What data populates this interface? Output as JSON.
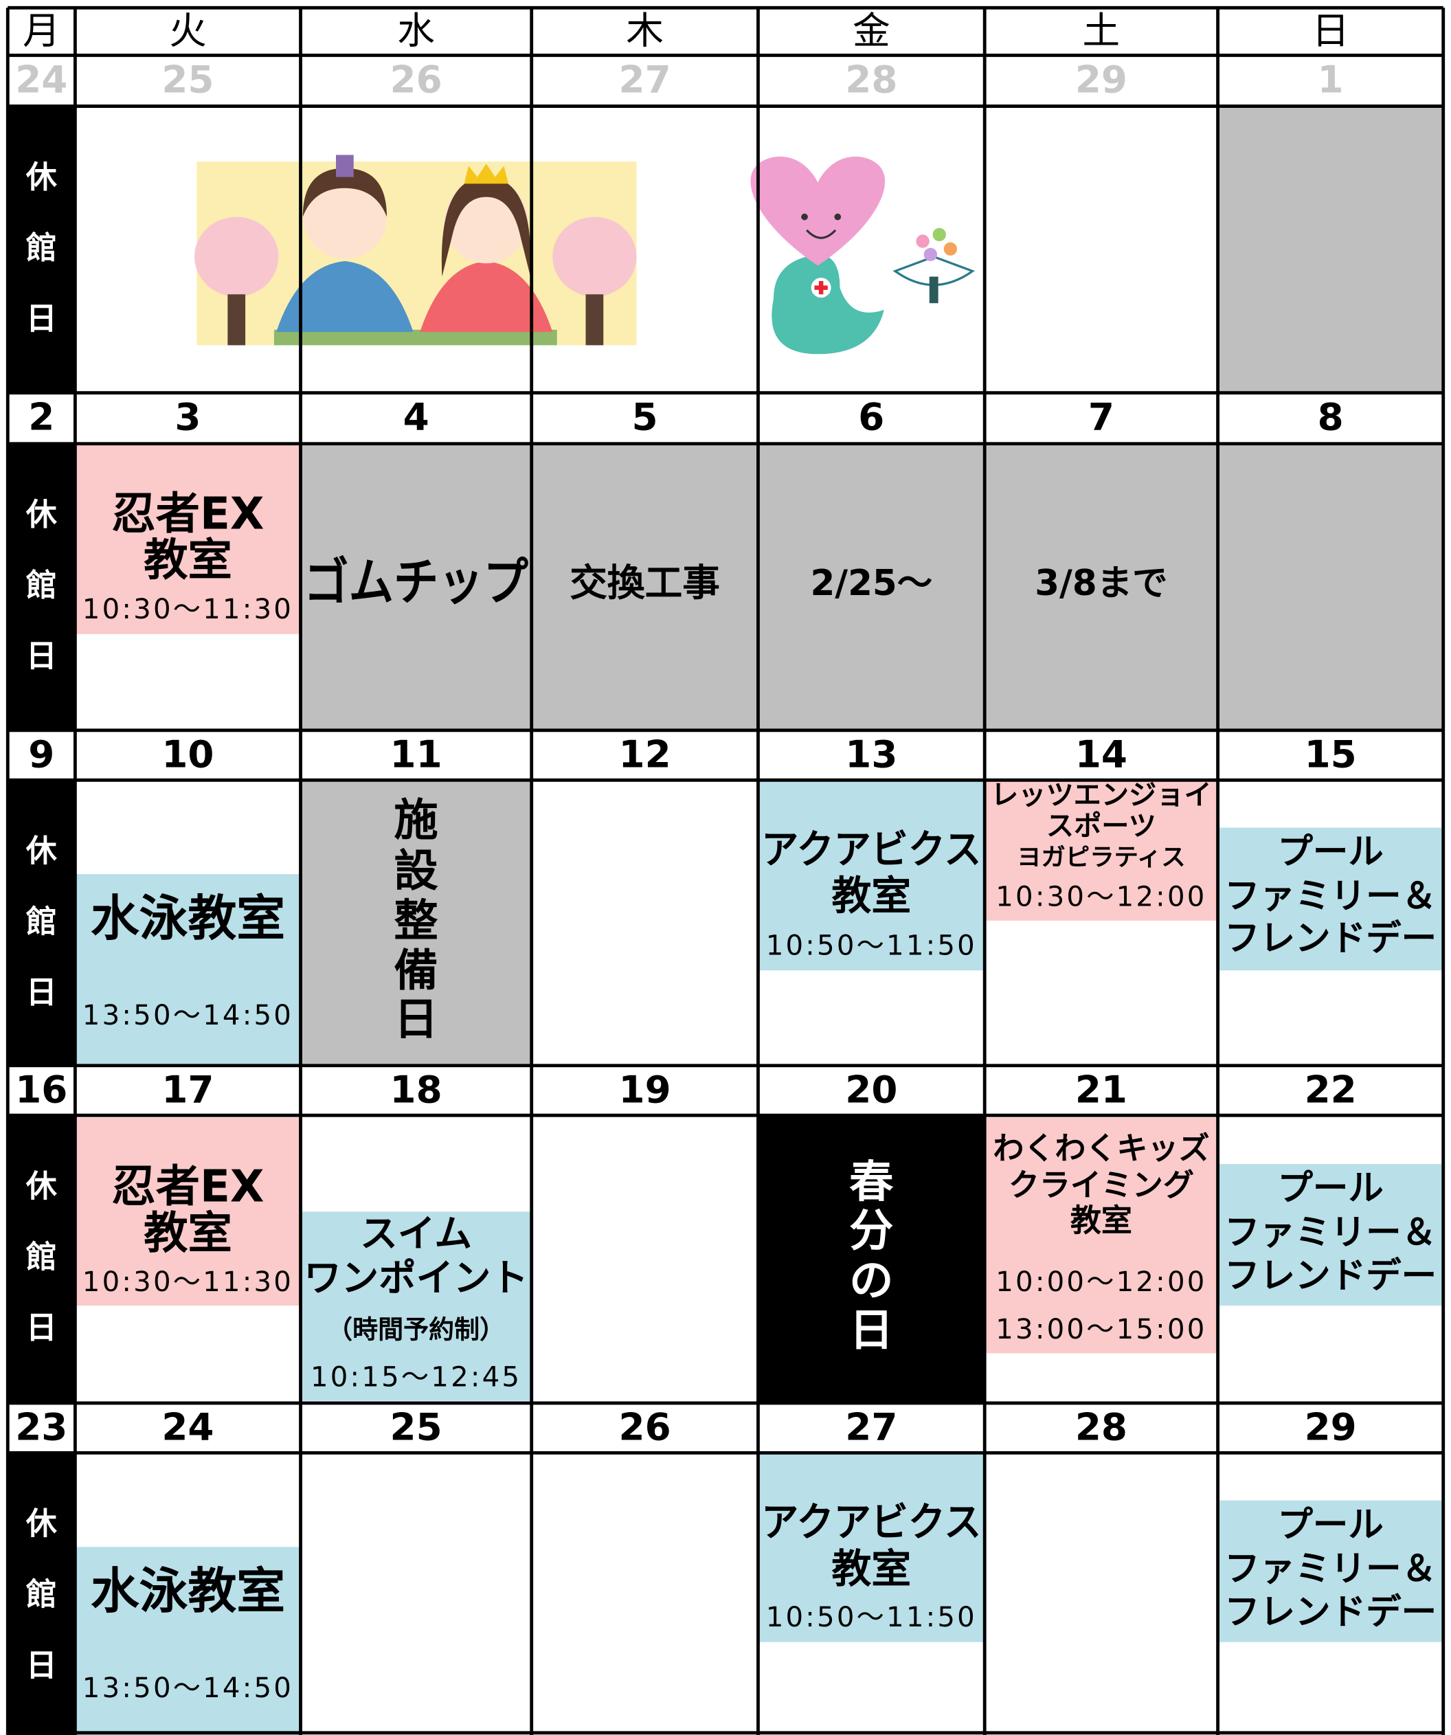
{
  "weekdays": [
    "月",
    "火",
    "水",
    "木",
    "金",
    "土",
    "日"
  ],
  "weeks": [
    {
      "dates": [
        24,
        25,
        26,
        27,
        28,
        29,
        1
      ],
      "cells": [
        {
          "lines": [
            "休",
            "館",
            "日"
          ]
        },
        null,
        null,
        null,
        null,
        null,
        null
      ]
    },
    {
      "dates": [
        2,
        3,
        4,
        5,
        6,
        7,
        8
      ],
      "cells": [
        {
          "lines": [
            "休",
            "館",
            "日"
          ]
        },
        {
          "lines": [
            "忍者EX",
            "教室"
          ],
          "times": [
            "10:30～11:30"
          ]
        },
        {
          "lines": [
            "ゴムチップ"
          ]
        },
        {
          "lines": [
            "交換工事"
          ]
        },
        {
          "lines": [
            "2/25～"
          ]
        },
        {
          "lines": [
            "3/8まで"
          ]
        },
        null
      ]
    },
    {
      "dates": [
        9,
        10,
        11,
        12,
        13,
        14,
        15
      ],
      "cells": [
        {
          "lines": [
            "休",
            "館",
            "日"
          ]
        },
        {
          "lines": [
            "水泳教室"
          ],
          "times": [
            "13:50～14:50"
          ]
        },
        {
          "lines": [
            "施",
            "設",
            "整",
            "備",
            "日"
          ]
        },
        null,
        {
          "lines": [
            "アクアビクス",
            "教室"
          ],
          "times": [
            "10:50～11:50"
          ]
        },
        {
          "lines": [
            "レッツエンジョイ",
            "スポーツ",
            "ヨガピラティス"
          ],
          "times": [
            "10:30～12:00"
          ]
        },
        {
          "lines": [
            "プール",
            "ファミリー＆",
            "フレンドデー"
          ]
        }
      ]
    },
    {
      "dates": [
        16,
        17,
        18,
        19,
        20,
        21,
        22
      ],
      "cells": [
        {
          "lines": [
            "休",
            "館",
            "日"
          ]
        },
        {
          "lines": [
            "忍者EX",
            "教室"
          ],
          "times": [
            "10:30～11:30"
          ]
        },
        {
          "lines": [
            "スイム",
            "ワンポイント",
            "（時間予約制）"
          ],
          "times": [
            "10:15～12:45"
          ]
        },
        null,
        {
          "lines": [
            "春",
            "分",
            "の",
            "日"
          ]
        },
        {
          "lines": [
            "わくわくキッズ",
            "クライミング",
            "教室"
          ],
          "times": [
            "10:00～12:00",
            "13:00～15:00"
          ]
        },
        {
          "lines": [
            "プール",
            "ファミリー＆",
            "フレンドデー"
          ]
        }
      ]
    },
    {
      "dates": [
        23,
        24,
        25,
        26,
        27,
        28,
        29
      ],
      "cells": [
        {
          "lines": [
            "休",
            "館",
            "日"
          ]
        },
        {
          "lines": [
            "水泳教室"
          ],
          "times": [
            "13:50～14:50"
          ]
        },
        null,
        null,
        {
          "lines": [
            "アクアビクス",
            "教室"
          ],
          "times": [
            "10:50～11:50"
          ]
        },
        null,
        {
          "lines": [
            "プール",
            "ファミリー＆",
            "フレンドデー"
          ]
        }
      ]
    }
  ]
}
